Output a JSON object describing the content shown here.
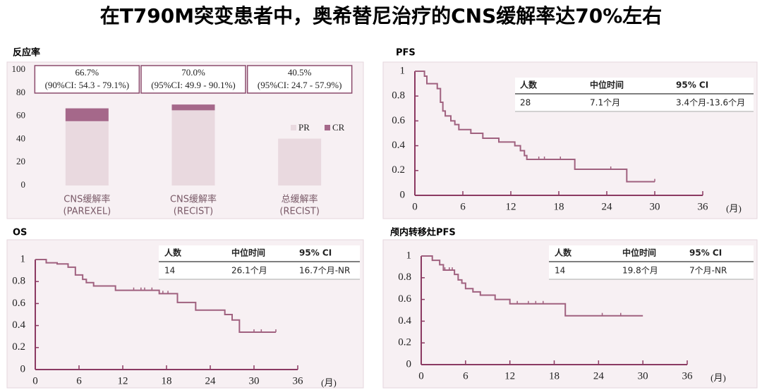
{
  "title": "在T790M突变患者中，奥希替尼治疗的CNS缓解率达70%左右",
  "chart_data": [
    {
      "type": "bar",
      "title": "反应率",
      "categories": [
        [
          "CNS缓解率",
          "(PAREXEL)"
        ],
        [
          "CNS缓解率",
          "(RECIST)"
        ],
        [
          "总缓解率",
          "(RECIST)"
        ]
      ],
      "series": [
        {
          "name": "PR",
          "color": "#e9d9df",
          "values": [
            55.6,
            65,
            40.5
          ]
        },
        {
          "name": "CR",
          "color": "#a5688a",
          "values": [
            11.1,
            5,
            0
          ]
        }
      ],
      "annotations": [
        {
          "value": "66.7%",
          "ci": "(90%CI: 54.3 - 79.1%)"
        },
        {
          "value": "70.0%",
          "ci": "(95%CI: 49.9 - 90.1%)"
        },
        {
          "value": "40.5%",
          "ci": "(95%CI: 24.7 - 57.9%)"
        }
      ],
      "ylim": [
        0,
        100
      ],
      "yticks": [
        0,
        20,
        40,
        60,
        80,
        100
      ]
    },
    {
      "type": "line",
      "title": "PFS",
      "xlabel": "(月)",
      "xlim": [
        0,
        36
      ],
      "xticks": [
        0,
        6,
        12,
        18,
        24,
        30,
        36
      ],
      "ylim": [
        0,
        1
      ],
      "yticks": [
        0,
        0.2,
        0.4,
        0.6,
        0.8,
        1
      ],
      "series": [
        {
          "color": "#a0617f",
          "x": [
            0,
            1.2,
            1.5,
            2.8,
            3.2,
            3.5,
            3.8,
            4.5,
            5,
            5.5,
            7,
            8.5,
            10.5,
            12.5,
            13.2,
            13.7,
            14,
            20,
            26.5,
            30
          ],
          "values": [
            1,
            0.96,
            0.9,
            0.86,
            0.75,
            0.68,
            0.64,
            0.6,
            0.57,
            0.53,
            0.5,
            0.46,
            0.43,
            0.4,
            0.36,
            0.32,
            0.29,
            0.21,
            0.11,
            0.11
          ],
          "censored_x": [
            15.5,
            16.2,
            18.2,
            24.5,
            30
          ]
        }
      ],
      "table": {
        "columns": [
          "人数",
          "中位时间",
          "95% CI"
        ],
        "rows": [
          [
            28,
            "7.1个月",
            "3.4个月-13.6个月"
          ]
        ]
      }
    },
    {
      "type": "line",
      "title": "OS",
      "xlabel": "(月)",
      "xlim": [
        0,
        36
      ],
      "xticks": [
        0,
        6,
        12,
        18,
        24,
        30,
        36
      ],
      "ylim": [
        0,
        1
      ],
      "yticks": [
        0,
        0.2,
        0.4,
        0.6,
        0.8,
        1
      ],
      "series": [
        {
          "color": "#a0617f",
          "x": [
            0,
            1.5,
            3,
            4.5,
            5.5,
            6.5,
            7,
            8,
            11,
            17,
            19.5,
            22,
            26,
            27,
            28,
            33
          ],
          "values": [
            1,
            0.97,
            0.96,
            0.93,
            0.86,
            0.82,
            0.79,
            0.76,
            0.72,
            0.69,
            0.61,
            0.54,
            0.5,
            0.45,
            0.34,
            0.34
          ],
          "censored_x": [
            13.5,
            14.5,
            15,
            16,
            17.5,
            18.2,
            30,
            31,
            33
          ]
        }
      ],
      "table": {
        "columns": [
          "人数",
          "中位时间",
          "95% CI"
        ],
        "rows": [
          [
            14,
            "26.1个月",
            "16.7个月-NR"
          ]
        ]
      }
    },
    {
      "type": "line",
      "title": "颅内转移灶PFS",
      "xlabel": "(月)",
      "xlim": [
        0,
        36
      ],
      "xticks": [
        0,
        6,
        12,
        18,
        24,
        30,
        36
      ],
      "ylim": [
        0,
        1
      ],
      "yticks": [
        0,
        0.2,
        0.4,
        0.6,
        0.8,
        1
      ],
      "series": [
        {
          "color": "#a0617f",
          "x": [
            0,
            1.5,
            2.5,
            3,
            4.5,
            5,
            5.5,
            6,
            7,
            8,
            10,
            12,
            19.5,
            30
          ],
          "values": [
            1,
            0.96,
            0.92,
            0.87,
            0.83,
            0.78,
            0.75,
            0.7,
            0.67,
            0.64,
            0.6,
            0.56,
            0.45,
            0.45
          ],
          "censored_x": [
            3.2,
            3.8,
            4.2,
            13,
            14.5,
            15.5,
            16.5,
            24.5,
            27
          ]
        }
      ],
      "table": {
        "columns": [
          "人数",
          "中位时间",
          "95% CI"
        ],
        "rows": [
          [
            14,
            "19.8个月",
            "7个月-NR"
          ]
        ]
      }
    }
  ]
}
